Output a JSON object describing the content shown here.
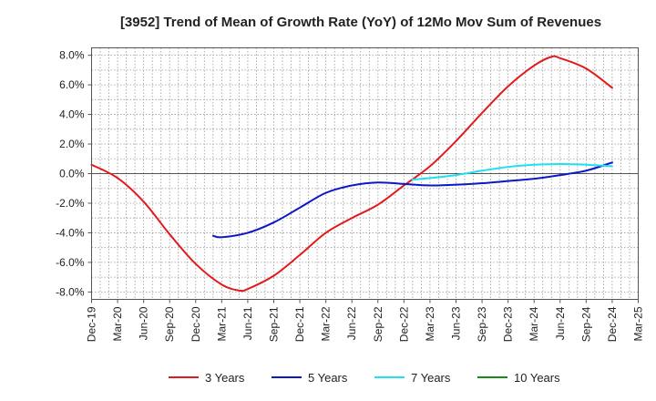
{
  "chart_data": {
    "type": "line",
    "title": "[3952]  Trend of Mean of Growth Rate (YoY) of 12Mo Mov Sum of Revenues",
    "xlabel": "",
    "ylabel": "",
    "ylim": [
      -8.5,
      8.5
    ],
    "yticks": [
      8.0,
      6.0,
      4.0,
      2.0,
      0.0,
      -2.0,
      -4.0,
      -6.0,
      -8.0
    ],
    "ytick_labels": [
      "8.0%",
      "6.0%",
      "4.0%",
      "2.0%",
      "0.0%",
      "-2.0%",
      "-4.0%",
      "-6.0%",
      "-8.0%"
    ],
    "x_tick_labels": [
      "Dec-19",
      "Mar-20",
      "Jun-20",
      "Sep-20",
      "Dec-20",
      "Mar-21",
      "Jun-21",
      "Sep-21",
      "Dec-21",
      "Mar-22",
      "Jun-22",
      "Sep-22",
      "Dec-22",
      "Mar-23",
      "Jun-23",
      "Sep-23",
      "Dec-23",
      "Mar-24",
      "Jun-24",
      "Sep-24",
      "Dec-24",
      "Mar-25"
    ],
    "grid": true,
    "legend_position": "bottom",
    "series": [
      {
        "name": "3 Years",
        "color": "#e31a1c",
        "points": [
          [
            0,
            0.6
          ],
          [
            1,
            -0.3
          ],
          [
            2,
            -1.9
          ],
          [
            3,
            -4.1
          ],
          [
            4,
            -6.1
          ],
          [
            5,
            -7.5
          ],
          [
            5.67,
            -7.9
          ],
          [
            6,
            -7.8
          ],
          [
            7,
            -6.9
          ],
          [
            8,
            -5.5
          ],
          [
            9,
            -4.0
          ],
          [
            10,
            -3.0
          ],
          [
            11,
            -2.1
          ],
          [
            12,
            -0.8
          ],
          [
            13,
            0.5
          ],
          [
            14,
            2.2
          ],
          [
            15,
            4.1
          ],
          [
            16,
            5.9
          ],
          [
            17,
            7.3
          ],
          [
            17.67,
            7.9
          ],
          [
            18,
            7.8
          ],
          [
            19,
            7.1
          ],
          [
            20,
            5.8
          ]
        ]
      },
      {
        "name": "5 Years",
        "color": "#0a18c7",
        "points": [
          [
            4.67,
            -4.2
          ],
          [
            5,
            -4.3
          ],
          [
            6,
            -4.0
          ],
          [
            7,
            -3.3
          ],
          [
            8,
            -2.3
          ],
          [
            9,
            -1.3
          ],
          [
            10,
            -0.8
          ],
          [
            11,
            -0.6
          ],
          [
            12,
            -0.7
          ],
          [
            13,
            -0.8
          ],
          [
            14,
            -0.75
          ],
          [
            15,
            -0.65
          ],
          [
            16,
            -0.5
          ],
          [
            17,
            -0.35
          ],
          [
            18,
            -0.1
          ],
          [
            19,
            0.2
          ],
          [
            20,
            0.75
          ]
        ]
      },
      {
        "name": "7 Years",
        "color": "#1fe0ef",
        "points": [
          [
            12.33,
            -0.4
          ],
          [
            13,
            -0.3
          ],
          [
            14,
            -0.1
          ],
          [
            15,
            0.2
          ],
          [
            16,
            0.45
          ],
          [
            17,
            0.6
          ],
          [
            18,
            0.65
          ],
          [
            19,
            0.6
          ],
          [
            20,
            0.5
          ]
        ]
      },
      {
        "name": "10 Years",
        "color": "#1a8a1a",
        "points": []
      }
    ]
  }
}
